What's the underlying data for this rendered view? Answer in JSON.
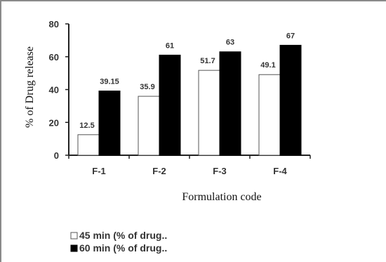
{
  "chart_data": {
    "type": "bar",
    "categories": [
      "F-1",
      "F-2",
      "F-3",
      "F-4"
    ],
    "series": [
      {
        "name": "45 min (% of drug..",
        "values": [
          12.5,
          35.9,
          51.7,
          49.1
        ],
        "labels": [
          "12.5",
          "35.9",
          "51.7",
          "49.1"
        ],
        "color": "#ffffff",
        "stroke": "#555555"
      },
      {
        "name": "60 min (% of drug..",
        "values": [
          39.15,
          61,
          63,
          67
        ],
        "labels": [
          "39.15",
          "61",
          "63",
          "67"
        ],
        "color": "#000000",
        "stroke": "#000000"
      }
    ],
    "xlabel": "Formulation code",
    "ylabel": "% of Drug release",
    "ylim": [
      0,
      80
    ],
    "yticks": [
      "0",
      "20",
      "40",
      "60",
      "80"
    ],
    "grid": false,
    "legend_position": "bottom-left"
  }
}
